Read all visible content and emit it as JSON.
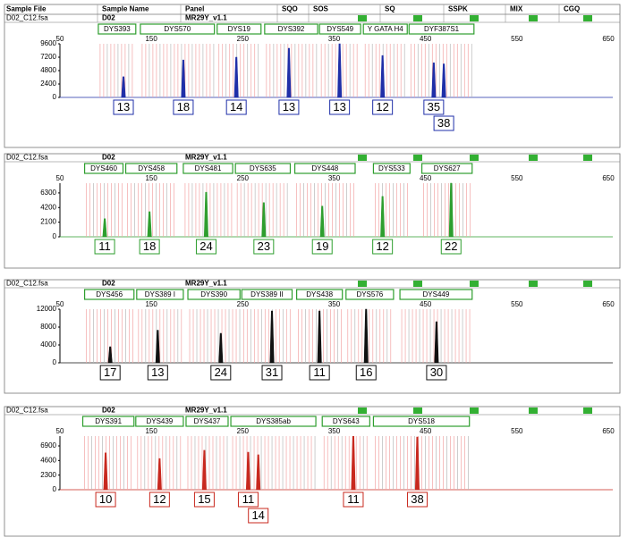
{
  "header": {
    "columns": [
      "Sample File",
      "Sample Name",
      "Panel",
      "SQO",
      "SOS",
      "SQ",
      "SSPK",
      "MIX",
      "CGQ"
    ]
  },
  "chart_data": [
    {
      "type": "peaks",
      "sample_file": "D02_C12.fsa",
      "sample_name": "D02",
      "panel": "MR29Y_v1.1",
      "color": "#1f2fa8",
      "xlim": [
        50,
        650
      ],
      "xticks": [
        50,
        150,
        250,
        350,
        450,
        550,
        650
      ],
      "ylim": [
        0,
        9600
      ],
      "yticks": [
        0,
        2400,
        4800,
        7200,
        9600
      ],
      "markers": [
        {
          "name": "DYS393",
          "range": [
            92,
            133
          ]
        },
        {
          "name": "DYS570",
          "range": [
            138,
            219
          ]
        },
        {
          "name": "DYS19",
          "range": [
            222,
            270
          ]
        },
        {
          "name": "DYS392",
          "range": [
            274,
            332
          ]
        },
        {
          "name": "DYS549",
          "range": [
            334,
            379
          ]
        },
        {
          "name": "Y GATA H4",
          "range": [
            382,
            430
          ]
        },
        {
          "name": "DYF387S1",
          "range": [
            432,
            503
          ]
        }
      ],
      "peaks": {
        "x": [
          119.5,
          185,
          243,
          300.5,
          356,
          403,
          459,
          470
        ],
        "values": [
          3700,
          6700,
          7200,
          8800,
          9600,
          7500,
          6200,
          6000
        ],
        "alleles": [
          "13",
          "18",
          "14",
          "13",
          "13",
          "12",
          "35",
          "38"
        ]
      }
    },
    {
      "type": "peaks",
      "sample_file": "D02_C12.fsa",
      "sample_name": "D02",
      "panel": "MR29Y_v1.1",
      "color": "#2e9e2e",
      "xlim": [
        50,
        650
      ],
      "xticks": [
        50,
        150,
        250,
        350,
        450,
        550,
        650
      ],
      "ylim": [
        0,
        7700
      ],
      "yticks": [
        0,
        2100,
        4200,
        6300
      ],
      "markers": [
        {
          "name": "DYS460",
          "range": [
            77,
            119
          ]
        },
        {
          "name": "DYS458",
          "range": [
            122,
            178
          ]
        },
        {
          "name": "DYS481",
          "range": [
            185,
            239
          ]
        },
        {
          "name": "DYS635",
          "range": [
            242,
            302
          ]
        },
        {
          "name": "DYS448",
          "range": [
            307,
            373
          ]
        },
        {
          "name": "DYS533",
          "range": [
            393,
            433
          ]
        },
        {
          "name": "DYS627",
          "range": [
            446,
            501
          ]
        }
      ],
      "peaks": {
        "x": [
          99,
          148,
          210,
          273,
          337,
          403,
          478
        ],
        "values": [
          2600,
          3600,
          6400,
          4900,
          4400,
          5800,
          7700
        ],
        "alleles": [
          "11",
          "18",
          "24",
          "23",
          "19",
          "12",
          "22"
        ]
      }
    },
    {
      "type": "peaks",
      "sample_file": "D02_C12.fsa",
      "sample_name": "D02",
      "panel": "MR29Y_v1.1",
      "color": "#111111",
      "xlim": [
        50,
        650
      ],
      "xticks": [
        50,
        150,
        250,
        350,
        450,
        550,
        650
      ],
      "ylim": [
        0,
        12000
      ],
      "yticks": [
        0,
        4000,
        8000,
        12000
      ],
      "markers": [
        {
          "name": "DYS456",
          "range": [
            77,
            131
          ]
        },
        {
          "name": "DYS389 I",
          "range": [
            134,
            185
          ]
        },
        {
          "name": "DYS390",
          "range": [
            190,
            247
          ]
        },
        {
          "name": "DYS389 II",
          "range": [
            249,
            304
          ]
        },
        {
          "name": "DYS438",
          "range": [
            309,
            359
          ]
        },
        {
          "name": "DYS576",
          "range": [
            363,
            415
          ]
        },
        {
          "name": "DYS449",
          "range": [
            422,
            501
          ]
        }
      ],
      "peaks": {
        "x": [
          105,
          157,
          226,
          282,
          334,
          385,
          462
        ],
        "values": [
          3600,
          7300,
          6600,
          11600,
          11600,
          12000,
          9200
        ],
        "alleles": [
          "17",
          "13",
          "24",
          "31",
          "11",
          "16",
          "30"
        ]
      }
    },
    {
      "type": "peaks",
      "sample_file": "D02_C12.fsa",
      "sample_name": "D02",
      "panel": "MR29Y_v1.1",
      "color": "#c8281e",
      "xlim": [
        50,
        650
      ],
      "xticks": [
        50,
        150,
        250,
        350,
        450,
        550,
        650
      ],
      "ylim": [
        0,
        8450
      ],
      "yticks": [
        0,
        2300,
        4600,
        6900
      ],
      "markers": [
        {
          "name": "DYS391",
          "range": [
            75,
            131
          ]
        },
        {
          "name": "DYS439",
          "range": [
            133,
            185
          ]
        },
        {
          "name": "DYS437",
          "range": [
            188,
            234
          ]
        },
        {
          "name": "DYS385ab",
          "range": [
            237,
            330
          ]
        },
        {
          "name": "DYS643",
          "range": [
            337,
            389
          ]
        },
        {
          "name": "DYS518",
          "range": [
            393,
            498
          ]
        }
      ],
      "peaks": {
        "x": [
          100,
          159,
          208,
          256,
          267,
          371,
          441
        ],
        "values": [
          5800,
          4900,
          6200,
          5900,
          5500,
          8400,
          8300
        ],
        "alleles": [
          "10",
          "12",
          "15",
          "11",
          "14",
          "11",
          "38"
        ]
      }
    }
  ]
}
